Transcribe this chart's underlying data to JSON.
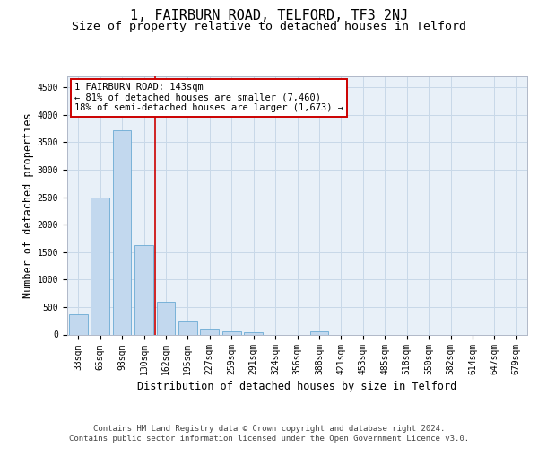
{
  "title_line1": "1, FAIRBURN ROAD, TELFORD, TF3 2NJ",
  "title_line2": "Size of property relative to detached houses in Telford",
  "xlabel": "Distribution of detached houses by size in Telford",
  "ylabel": "Number of detached properties",
  "categories": [
    "33sqm",
    "65sqm",
    "98sqm",
    "130sqm",
    "162sqm",
    "195sqm",
    "227sqm",
    "259sqm",
    "291sqm",
    "324sqm",
    "356sqm",
    "388sqm",
    "421sqm",
    "453sqm",
    "485sqm",
    "518sqm",
    "550sqm",
    "582sqm",
    "614sqm",
    "647sqm",
    "679sqm"
  ],
  "values": [
    375,
    2500,
    3725,
    1625,
    600,
    240,
    110,
    60,
    45,
    0,
    0,
    60,
    0,
    0,
    0,
    0,
    0,
    0,
    0,
    0,
    0
  ],
  "bar_color": "#c2d8ee",
  "bar_edge_color": "#6aaad4",
  "vline_pos": 3.5,
  "vline_color": "#cc0000",
  "annotation_line1": "1 FAIRBURN ROAD: 143sqm",
  "annotation_line2": "← 81% of detached houses are smaller (7,460)",
  "annotation_line3": "18% of semi-detached houses are larger (1,673) →",
  "annotation_box_facecolor": "#ffffff",
  "annotation_box_edgecolor": "#cc0000",
  "ylim": [
    0,
    4700
  ],
  "yticks": [
    0,
    500,
    1000,
    1500,
    2000,
    2500,
    3000,
    3500,
    4000,
    4500
  ],
  "grid_color": "#c8d8e8",
  "bg_color": "#e8f0f8",
  "footer_line1": "Contains HM Land Registry data © Crown copyright and database right 2024.",
  "footer_line2": "Contains public sector information licensed under the Open Government Licence v3.0.",
  "title1_fontsize": 11,
  "title2_fontsize": 9.5,
  "axis_label_fontsize": 8.5,
  "tick_fontsize": 7,
  "annotation_fontsize": 7.5,
  "footer_fontsize": 6.5
}
